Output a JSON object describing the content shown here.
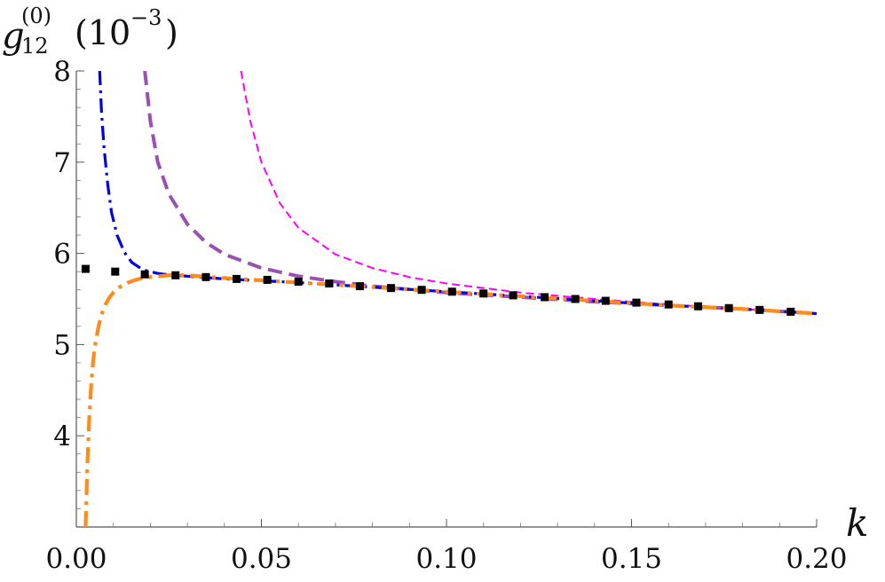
{
  "chart_data": {
    "type": "line",
    "xlabel": "k",
    "ylabel_main": "g",
    "ylabel_sub": "12",
    "ylabel_sup": "(0)",
    "ylabel_units": "(10",
    "ylabel_units_exp": "−3",
    "ylabel_units_close": ")",
    "xlim": [
      0,
      0.2
    ],
    "ylim": [
      3.0,
      8.0
    ],
    "x_ticks": [
      0.0,
      0.05,
      0.1,
      0.15,
      0.2
    ],
    "x_tick_labels": [
      "0.00",
      "0.05",
      "0.10",
      "0.15",
      "0.20"
    ],
    "y_ticks": [
      4,
      5,
      6,
      7,
      8
    ],
    "y_tick_labels": [
      "4",
      "5",
      "6",
      "7",
      "8"
    ],
    "grid": false,
    "series": [
      {
        "color": "#ff00ff",
        "style": "dashed-thin",
        "x": [
          0.0445,
          0.047,
          0.05,
          0.055,
          0.06,
          0.07,
          0.08,
          0.09,
          0.1,
          0.12,
          0.14,
          0.16,
          0.18,
          0.2
        ],
        "y": [
          8.0,
          7.45,
          7.0,
          6.55,
          6.28,
          5.99,
          5.84,
          5.74,
          5.67,
          5.57,
          5.5,
          5.44,
          5.39,
          5.34
        ]
      },
      {
        "color": "#9b4fb4",
        "style": "dashed-thick",
        "x": [
          0.0185,
          0.02,
          0.022,
          0.025,
          0.03,
          0.035,
          0.04,
          0.05,
          0.06,
          0.07,
          0.08,
          0.1,
          0.12,
          0.14,
          0.16,
          0.18,
          0.2
        ],
        "y": [
          8.0,
          7.45,
          7.0,
          6.65,
          6.32,
          6.12,
          5.99,
          5.84,
          5.75,
          5.69,
          5.64,
          5.57,
          5.52,
          5.47,
          5.43,
          5.39,
          5.34
        ]
      },
      {
        "color": "#0000e0",
        "style": "dashdot",
        "x": [
          0.0063,
          0.0068,
          0.0075,
          0.0085,
          0.0095,
          0.011,
          0.013,
          0.015,
          0.018,
          0.022,
          0.026,
          0.03,
          0.04,
          0.06,
          0.08,
          0.1,
          0.12,
          0.14,
          0.16,
          0.18,
          0.2
        ],
        "y": [
          8.0,
          7.55,
          7.15,
          6.75,
          6.45,
          6.2,
          6.01,
          5.9,
          5.82,
          5.78,
          5.76,
          5.75,
          5.72,
          5.68,
          5.63,
          5.58,
          5.53,
          5.48,
          5.43,
          5.39,
          5.34
        ]
      },
      {
        "color": "#ff8c1a",
        "style": "dashdot-thick",
        "x": [
          0.0025,
          0.003,
          0.0035,
          0.004,
          0.0045,
          0.005,
          0.006,
          0.007,
          0.008,
          0.009,
          0.01,
          0.012,
          0.014,
          0.016,
          0.018,
          0.02,
          0.025,
          0.03,
          0.04,
          0.06,
          0.08,
          0.1,
          0.12,
          0.14,
          0.16,
          0.18,
          0.2
        ],
        "y": [
          3.0,
          3.7,
          4.2,
          4.55,
          4.8,
          4.98,
          5.2,
          5.35,
          5.45,
          5.52,
          5.57,
          5.64,
          5.68,
          5.71,
          5.73,
          5.74,
          5.76,
          5.76,
          5.73,
          5.68,
          5.63,
          5.58,
          5.53,
          5.48,
          5.43,
          5.39,
          5.34
        ]
      },
      {
        "color": "#000000",
        "style": "points",
        "x": [
          0.0025,
          0.0105,
          0.0185,
          0.0268,
          0.035,
          0.0433,
          0.0516,
          0.06,
          0.0683,
          0.0766,
          0.085,
          0.0933,
          0.1015,
          0.11,
          0.118,
          0.1265,
          0.1348,
          0.143,
          0.1513,
          0.16,
          0.168,
          0.1763,
          0.1846,
          0.193
        ],
        "y": [
          5.83,
          5.8,
          5.77,
          5.76,
          5.74,
          5.72,
          5.71,
          5.69,
          5.67,
          5.64,
          5.62,
          5.6,
          5.58,
          5.56,
          5.54,
          5.52,
          5.5,
          5.48,
          5.46,
          5.44,
          5.42,
          5.4,
          5.38,
          5.36
        ]
      }
    ]
  }
}
